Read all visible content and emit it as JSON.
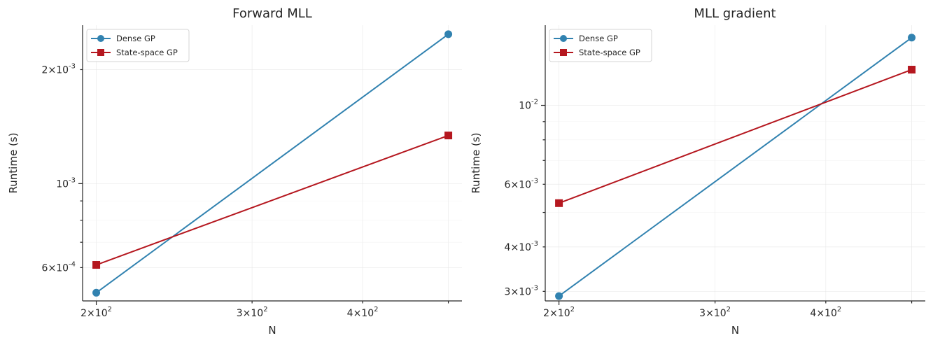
{
  "chart_data": [
    {
      "type": "line",
      "title": "Forward MLL",
      "xlabel": "N",
      "ylabel": "Runtime (s)",
      "xscale": "log",
      "yscale": "log",
      "xlim": [
        193,
        518
      ],
      "ylim": [
        0.00049,
        0.00262
      ],
      "grid": true,
      "legend": "top-left",
      "x_major_ticks": [
        {
          "value": 200,
          "base": "2",
          "exp": "2"
        }
      ],
      "x_minor_ticks": [
        {
          "value": 300,
          "base": "3",
          "exp": "2"
        },
        {
          "value": 400,
          "base": "4",
          "exp": "2"
        }
      ],
      "x_unlabeled_ticks": [
        500
      ],
      "y_labeled_ticks": [
        {
          "value": 0.002,
          "base": "2",
          "exp": "-3"
        },
        {
          "value": 0.001,
          "base": "10",
          "exp": "-3"
        },
        {
          "value": 0.0006,
          "base": "6",
          "exp": "-4"
        }
      ],
      "y_minor_ticks": [
        0.0007,
        0.0008,
        0.0009
      ],
      "series": [
        {
          "name": "Dense GP",
          "color": "#3182b0",
          "marker": "circle",
          "x": [
            200,
            500
          ],
          "y": [
            0.000515,
            0.00248
          ]
        },
        {
          "name": "State-space GP",
          "color": "#b5171f",
          "marker": "square",
          "x": [
            200,
            500
          ],
          "y": [
            0.00061,
            0.00134
          ]
        }
      ]
    },
    {
      "type": "line",
      "title": "MLL gradient",
      "xlabel": "N",
      "ylabel": "Runtime (s)",
      "xscale": "log",
      "yscale": "log",
      "xlim": [
        193,
        518
      ],
      "ylim": [
        0.00282,
        0.0168
      ],
      "grid": true,
      "legend": "top-left",
      "x_major_ticks": [
        {
          "value": 200,
          "base": "2",
          "exp": "2"
        }
      ],
      "x_minor_ticks": [
        {
          "value": 300,
          "base": "3",
          "exp": "2"
        },
        {
          "value": 400,
          "base": "4",
          "exp": "2"
        }
      ],
      "x_unlabeled_ticks": [
        500
      ],
      "y_labeled_ticks": [
        {
          "value": 0.01,
          "base": "10",
          "exp": "-2"
        },
        {
          "value": 0.006,
          "base": "6",
          "exp": "-3"
        },
        {
          "value": 0.004,
          "base": "4",
          "exp": "-3"
        },
        {
          "value": 0.003,
          "base": "3",
          "exp": "-3"
        }
      ],
      "y_minor_ticks": [
        0.005,
        0.007,
        0.008,
        0.009
      ],
      "series": [
        {
          "name": "Dense GP",
          "color": "#3182b0",
          "marker": "circle",
          "x": [
            200,
            500
          ],
          "y": [
            0.00291,
            0.0155
          ]
        },
        {
          "name": "State-space GP",
          "color": "#b5171f",
          "marker": "square",
          "x": [
            200,
            500
          ],
          "y": [
            0.00531,
            0.0126
          ]
        }
      ]
    }
  ]
}
